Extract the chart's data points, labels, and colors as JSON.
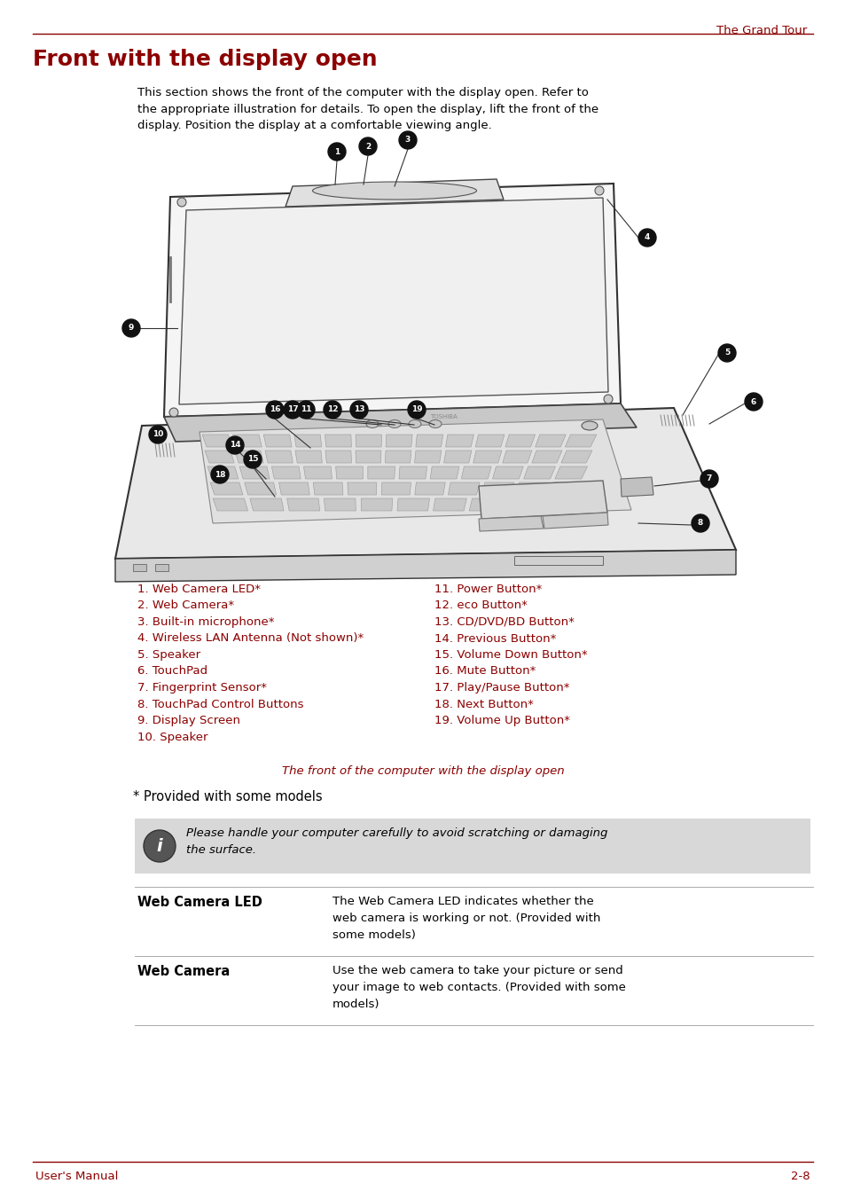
{
  "page_color": "#ffffff",
  "header_text": "The Grand Tour",
  "header_color": "#8B0000",
  "header_line_color": "#8B0000",
  "title": "Front with the display open",
  "title_color": "#8B0000",
  "title_fontsize": 18,
  "intro_text": "This section shows the front of the computer with the display open. Refer to\nthe appropriate illustration for details. To open the display, lift the front of the\ndisplay. Position the display at a comfortable viewing angle.",
  "intro_color": "#000000",
  "caption_text": "The front of the computer with the display open",
  "caption_color": "#8B0000",
  "list_left": [
    "1. Web Camera LED*",
    "2. Web Camera*",
    "3. Built-in microphone*",
    "4. Wireless LAN Antenna (Not shown)*",
    "5. Speaker",
    "6. TouchPad",
    "7. Fingerprint Sensor*",
    "8. TouchPad Control Buttons",
    "9. Display Screen",
    "10. Speaker"
  ],
  "list_right": [
    "11. Power Button*",
    "12. eco Button*",
    "13. CD/DVD/BD Button*",
    "14. Previous Button*",
    "15. Volume Down Button*",
    "16. Mute Button*",
    "17. Play/Pause Button*",
    "18. Next Button*",
    "19. Volume Up Button*"
  ],
  "list_color": "#8B0000",
  "provided_text": "* Provided with some models",
  "provided_color": "#000000",
  "note_text": "Please handle your computer carefully to avoid scratching or damaging\nthe surface.",
  "note_color": "#000000",
  "note_bg": "#d8d8d8",
  "table_rows": [
    {
      "label": "Web Camera LED",
      "text": "The Web Camera LED indicates whether the\nweb camera is working or not. (Provided with\nsome models)"
    },
    {
      "label": "Web Camera",
      "text": "Use the web camera to take your picture or send\nyour image to web contacts. (Provided with some\nmodels)"
    }
  ],
  "table_label_color": "#000000",
  "table_text_color": "#000000",
  "footer_left": "User's Manual",
  "footer_right": "2-8",
  "footer_color": "#8B0000",
  "footer_line_color": "#8B0000"
}
